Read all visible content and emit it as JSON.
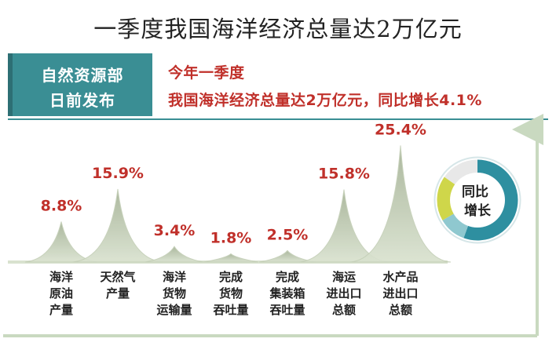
{
  "title": "一季度我国海洋经济总量达2万亿元",
  "source": {
    "line1": "自然资源部",
    "line2": "日前发布"
  },
  "headline": {
    "line1": "今年一季度",
    "line2": "我国海洋经济总量达2万亿元，同比增长4.1%"
  },
  "ring": {
    "label_line1": "同比",
    "label_line2": "增长",
    "colors": [
      "#2e8fa0",
      "#8fc8cf",
      "#cfd64a",
      "#e8e8e8"
    ]
  },
  "colors": {
    "accent": "#3a8e94",
    "value_text": "#c0302a",
    "peak_fill": "#a9b79a",
    "axis": "#c9d9c0"
  },
  "chart_data": {
    "type": "area",
    "categories": [
      [
        "海洋",
        "原油",
        "产量"
      ],
      [
        "天然气",
        "产量"
      ],
      [
        "海洋",
        "货物",
        "运输量"
      ],
      [
        "完成",
        "货物",
        "吞吐量"
      ],
      [
        "完成",
        "集装箱",
        "吞吐量"
      ],
      [
        "海运",
        "进出口",
        "总额"
      ],
      [
        "水产品",
        "进出口",
        "总额"
      ]
    ],
    "values": [
      8.8,
      15.9,
      3.4,
      1.8,
      2.5,
      15.8,
      25.4
    ],
    "value_labels": [
      "8.8%",
      "15.9%",
      "3.4%",
      "1.8%",
      "2.5%",
      "15.8%",
      "25.4%"
    ],
    "unit": "%",
    "ylim": [
      0,
      27
    ]
  }
}
